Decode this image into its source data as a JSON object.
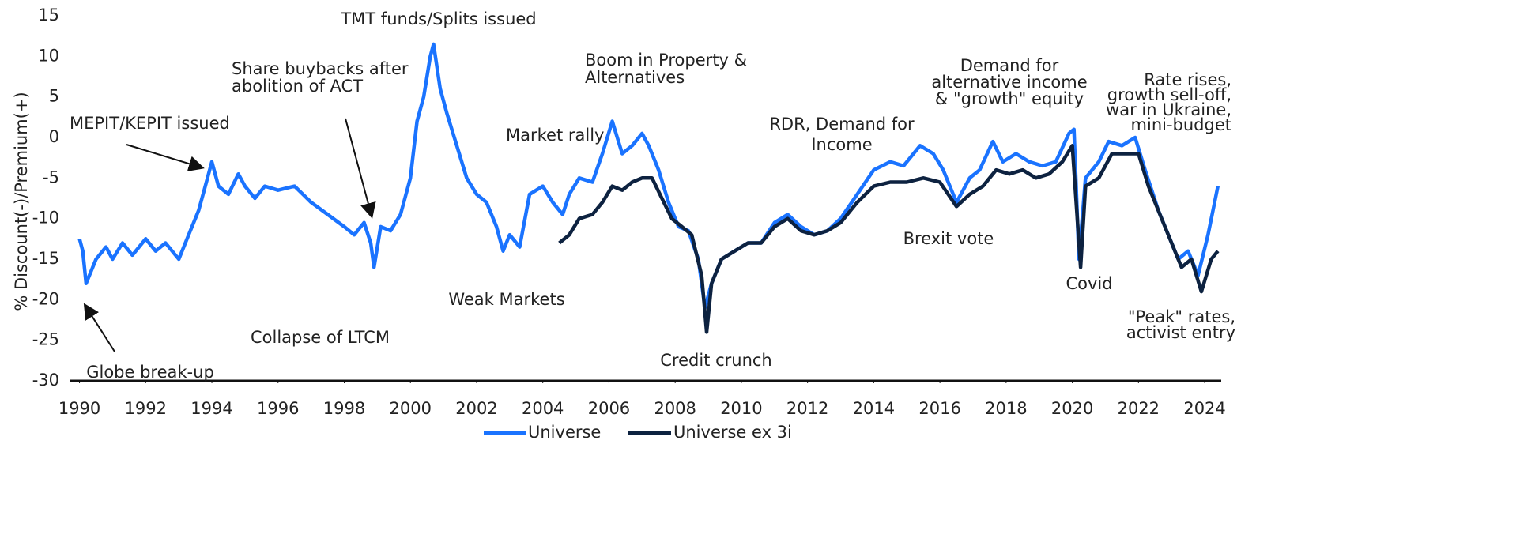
{
  "chart_data": {
    "type": "line",
    "y_label": "% Discount(-)/Premium(+)",
    "xlim": [
      1989.7,
      2024.5
    ],
    "xticks": [
      1990,
      1992,
      1994,
      1996,
      1998,
      2000,
      2002,
      2004,
      2006,
      2008,
      2010,
      2012,
      2014,
      2016,
      2018,
      2020,
      2022,
      2024
    ],
    "ylim": [
      -30,
      15
    ],
    "yticks": [
      -30,
      -25,
      -20,
      -15,
      -10,
      -5,
      0,
      5,
      10,
      15
    ],
    "grid": false,
    "legend": "bottom",
    "series": [
      {
        "name": "Universe",
        "color": "#1a73ff",
        "x": [
          1990.0,
          1990.1,
          1990.2,
          1990.5,
          1990.8,
          1991.0,
          1991.3,
          1991.6,
          1992.0,
          1992.3,
          1992.6,
          1993.0,
          1993.3,
          1993.6,
          1993.8,
          1994.0,
          1994.2,
          1994.5,
          1994.8,
          1995.0,
          1995.3,
          1995.6,
          1996.0,
          1996.5,
          1997.0,
          1997.5,
          1998.0,
          1998.3,
          1998.6,
          1998.8,
          1998.9,
          1999.1,
          1999.4,
          1999.7,
          2000.0,
          2000.2,
          2000.4,
          2000.6,
          2000.7,
          2000.9,
          2001.1,
          2001.4,
          2001.7,
          2002.0,
          2002.3,
          2002.6,
          2002.8,
          2003.0,
          2003.3,
          2003.6,
          2004.0,
          2004.3,
          2004.6,
          2004.8,
          2005.1,
          2005.5,
          2005.8,
          2006.1,
          2006.4,
          2006.7,
          2007.0,
          2007.2,
          2007.5,
          2007.8,
          2008.1,
          2008.4,
          2008.7,
          2008.9,
          2009.1,
          2009.4,
          2009.8,
          2010.2,
          2010.6,
          2011.0,
          2011.4,
          2011.8,
          2012.2,
          2012.6,
          2013.0,
          2013.5,
          2014.0,
          2014.5,
          2014.9,
          2015.4,
          2015.8,
          2016.1,
          2016.5,
          2016.9,
          2017.2,
          2017.6,
          2017.9,
          2018.3,
          2018.7,
          2019.1,
          2019.5,
          2019.9,
          2020.05,
          2020.2,
          2020.4,
          2020.8,
          2021.1,
          2021.5,
          2021.9,
          2022.2,
          2022.6,
          2022.9,
          2023.2,
          2023.5,
          2023.8,
          2024.1,
          2024.4
        ],
        "values": [
          -12.5,
          -14,
          -18,
          -15,
          -13.5,
          -15,
          -13,
          -14.5,
          -12.5,
          -14,
          -13,
          -15,
          -12,
          -9,
          -6,
          -3,
          -6,
          -7,
          -4.5,
          -6,
          -7.5,
          -6,
          -6.5,
          -6,
          -8,
          -9.5,
          -11,
          -12,
          -10.5,
          -13,
          -16,
          -11,
          -11.5,
          -9.5,
          -5,
          2,
          5,
          10,
          11.5,
          6,
          3,
          -1,
          -5,
          -7,
          -8,
          -11,
          -14,
          -12,
          -13.5,
          -7,
          -6,
          -8,
          -9.5,
          -7,
          -5,
          -5.5,
          -2,
          2,
          -2,
          -1,
          0.5,
          -1,
          -4,
          -8,
          -11,
          -11.5,
          -15,
          -21,
          -18,
          -15,
          -14,
          -13,
          -13,
          -10.5,
          -9.5,
          -11,
          -12,
          -11.5,
          -10,
          -7,
          -4,
          -3,
          -3.5,
          -1,
          -2,
          -4,
          -8,
          -5,
          -4,
          -0.5,
          -3,
          -2,
          -3,
          -3.5,
          -3,
          0.5,
          1,
          -15,
          -5,
          -3,
          -0.5,
          -1,
          0,
          -4,
          -9,
          -12,
          -15,
          -14,
          -17,
          -12,
          -6
        ]
      },
      {
        "name": "Universe ex 3i",
        "color": "#0d2240",
        "x": [
          2004.5,
          2004.8,
          2005.1,
          2005.5,
          2005.8,
          2006.1,
          2006.4,
          2006.7,
          2007.0,
          2007.3,
          2007.6,
          2007.9,
          2008.2,
          2008.5,
          2008.8,
          2008.95,
          2009.1,
          2009.4,
          2009.8,
          2010.2,
          2010.6,
          2011.0,
          2011.4,
          2011.8,
          2012.2,
          2012.6,
          2013.0,
          2013.5,
          2014.0,
          2014.5,
          2015.0,
          2015.5,
          2016.0,
          2016.5,
          2016.9,
          2017.3,
          2017.7,
          2018.1,
          2018.5,
          2018.9,
          2019.3,
          2019.7,
          2020.0,
          2020.15,
          2020.25,
          2020.4,
          2020.8,
          2021.2,
          2021.6,
          2022.0,
          2022.3,
          2022.7,
          2023.0,
          2023.3,
          2023.6,
          2023.9,
          2024.2,
          2024.4
        ],
        "values": [
          -13,
          -12,
          -10,
          -9.5,
          -8,
          -6,
          -6.5,
          -5.5,
          -5,
          -5,
          -7.5,
          -10,
          -11,
          -12,
          -17,
          -24,
          -18,
          -15,
          -14,
          -13,
          -13,
          -11,
          -10,
          -11.5,
          -12,
          -11.5,
          -10.5,
          -8,
          -6,
          -5.5,
          -5.5,
          -5,
          -5.5,
          -8.5,
          -7,
          -6,
          -4,
          -4.5,
          -4,
          -5,
          -4.5,
          -3,
          -1,
          -10,
          -16,
          -6,
          -5,
          -2,
          -2,
          -2,
          -6,
          -10,
          -13,
          -16,
          -15,
          -19,
          -15,
          -14
        ]
      }
    ],
    "annotations": [
      [
        "TMT funds/Splits issued"
      ],
      [
        "Share buybacks after",
        "abolition of ACT"
      ],
      [
        "Boom in Property &",
        "Alternatives"
      ],
      [
        "MEPIT/KEPIT issued"
      ],
      [
        "Market rally"
      ],
      [
        "Demand for",
        "alternative income",
        "& \"growth\" equity"
      ],
      [
        "Rate rises,",
        "growth sell-off,",
        "war in Ukraine,",
        "mini-budget"
      ],
      [
        "RDR, Demand for",
        "Income"
      ],
      [
        "Brexit vote"
      ],
      [
        "Covid"
      ],
      [
        "Weak Markets"
      ],
      [
        "\"Peak\" rates,",
        "activist entry"
      ],
      [
        "Collapse of LTCM"
      ],
      [
        "Credit crunch"
      ],
      [
        "Globe break-up"
      ]
    ]
  }
}
